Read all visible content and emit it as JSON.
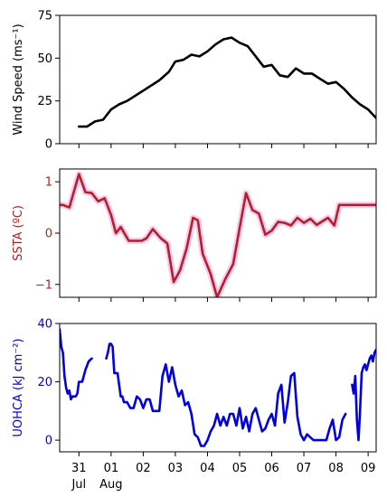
{
  "chart_data": [
    {
      "type": "line",
      "ylabel": "Wind Speed (ms⁻¹)",
      "ylabel_color": "#000000",
      "line_color": "#000000",
      "ylim": [
        0,
        75
      ],
      "yticks": [
        0,
        25,
        50,
        75
      ],
      "ytick_labels": [
        "0",
        "25",
        "50",
        "75"
      ],
      "tick_label_color": "#000000",
      "series": [
        {
          "x": [
            0,
            0.25,
            0.5,
            0.75,
            1.0,
            1.25,
            1.5,
            2.0,
            2.5,
            2.8,
            3.0,
            3.25,
            3.5,
            3.75,
            4.0,
            4.25,
            4.5,
            4.75,
            5.0,
            5.25,
            5.5,
            5.75,
            6.0,
            6.25,
            6.5,
            6.75,
            7.0,
            7.25,
            7.5,
            7.75,
            8.0,
            8.25,
            8.5,
            8.75,
            9.0,
            9.25
          ],
          "y": [
            10,
            10,
            13,
            14,
            20,
            23,
            25,
            31,
            37,
            42,
            48,
            49,
            52,
            51,
            54,
            58,
            61,
            62,
            59,
            57,
            51,
            45,
            46,
            40,
            39,
            44,
            41,
            41,
            38,
            35,
            36,
            32,
            27,
            23,
            20,
            15
          ]
        }
      ]
    },
    {
      "type": "line",
      "ylabel": "SSTA (ºC)",
      "ylabel_color": "#b22222",
      "line_color": "#b22222",
      "shade_color": "#ffc8f2",
      "ylim": [
        -1.25,
        1.25
      ],
      "yticks": [
        -1,
        0,
        1
      ],
      "ytick_labels": [
        "−1",
        "0",
        "1"
      ],
      "tick_label_color": "#b22222",
      "series": [
        {
          "x": [
            -0.6,
            -0.5,
            -0.3,
            0.0,
            0.2,
            0.4,
            0.6,
            0.8,
            1.0,
            1.15,
            1.3,
            1.55,
            1.75,
            1.95,
            2.1,
            2.3,
            2.55,
            2.75,
            2.95,
            3.15,
            3.35,
            3.55,
            3.7,
            3.85,
            4.1,
            4.3,
            4.55,
            4.8,
            5.0,
            5.2,
            5.4,
            5.6,
            5.8,
            6.0,
            6.2,
            6.4,
            6.6,
            6.8,
            7.0,
            7.2,
            7.4,
            7.55,
            7.75,
            7.95,
            8.1,
            8.3,
            8.5,
            8.7,
            8.9,
            9.1,
            9.25
          ],
          "y": [
            0.55,
            0.55,
            0.5,
            1.15,
            0.8,
            0.78,
            0.62,
            0.68,
            0.35,
            0.0,
            0.12,
            -0.15,
            -0.15,
            -0.15,
            -0.1,
            0.08,
            -0.1,
            -0.2,
            -0.95,
            -0.72,
            -0.3,
            0.3,
            0.25,
            -0.4,
            -0.8,
            -1.25,
            -0.9,
            -0.6,
            0.1,
            0.78,
            0.45,
            0.38,
            -0.03,
            0.05,
            0.22,
            0.2,
            0.15,
            0.3,
            0.2,
            0.28,
            0.16,
            0.22,
            0.3,
            0.15,
            0.55,
            0.55,
            0.55,
            0.55,
            0.55,
            0.55,
            0.55
          ]
        }
      ]
    },
    {
      "type": "line",
      "ylabel": "UOHCA (kJ cm⁻²)",
      "ylabel_color": "#0000e0",
      "line_color": "#0000e0",
      "ylim": [
        -4,
        40
      ],
      "yticks": [
        0,
        20,
        40
      ],
      "ytick_labels": [
        "0",
        "20",
        "40"
      ],
      "tick_label_color": "#0000e0",
      "x_axis_ticks": [
        {
          "x": 0,
          "label": "31",
          "sub": "Jul"
        },
        {
          "x": 1,
          "label": "01",
          "sub": "Aug"
        },
        {
          "x": 2,
          "label": "02",
          "sub": ""
        },
        {
          "x": 3,
          "label": "03",
          "sub": ""
        },
        {
          "x": 4,
          "label": "04",
          "sub": ""
        },
        {
          "x": 5,
          "label": "05",
          "sub": ""
        },
        {
          "x": 6,
          "label": "06",
          "sub": ""
        },
        {
          "x": 7,
          "label": "07",
          "sub": ""
        },
        {
          "x": 8,
          "label": "08",
          "sub": ""
        },
        {
          "x": 9,
          "label": "09",
          "sub": ""
        }
      ],
      "xlim": [
        -0.6,
        9.25
      ],
      "series": [
        {
          "x": [
            -0.6,
            -0.55,
            -0.5,
            -0.45,
            -0.4,
            -0.35,
            -0.3,
            -0.25,
            -0.2,
            -0.15,
            -0.1,
            -0.05,
            0.0,
            0.1,
            0.2,
            0.3,
            0.4
          ],
          "y": [
            38,
            32,
            30,
            22,
            18,
            16,
            17,
            14,
            15,
            15,
            15,
            16,
            20,
            20,
            24,
            27,
            28
          ]
        },
        {
          "x": [
            0.85,
            0.9,
            0.95,
            1.0,
            1.05,
            1.1,
            1.15,
            1.2,
            1.3,
            1.35,
            1.4,
            1.5,
            1.6,
            1.7,
            1.8,
            1.9,
            2.0,
            2.1,
            2.2,
            2.3,
            2.4,
            2.5,
            2.6,
            2.7,
            2.8,
            2.9,
            3.0,
            3.1,
            3.2,
            3.3,
            3.4,
            3.5,
            3.6,
            3.7,
            3.8,
            3.9,
            4.0,
            4.1,
            4.2,
            4.3,
            4.4,
            4.5,
            4.6,
            4.7,
            4.8,
            4.9,
            5.0,
            5.1,
            5.2,
            5.3,
            5.4,
            5.5,
            5.6,
            5.7,
            5.8,
            5.9,
            6.0,
            6.1,
            6.2,
            6.3,
            6.4,
            6.5,
            6.6,
            6.7,
            6.8,
            6.9,
            7.0,
            7.1,
            7.2,
            7.3,
            7.4,
            7.5,
            7.6,
            7.7,
            7.8,
            7.9,
            8.0,
            8.1,
            8.2,
            8.3
          ],
          "y": [
            28,
            30,
            33,
            33,
            32,
            23,
            23,
            23,
            15,
            15,
            13,
            13,
            11,
            11,
            15,
            14,
            11,
            14,
            14,
            10,
            10,
            10,
            22,
            26,
            20,
            25,
            19,
            15,
            17,
            12,
            13,
            9,
            2,
            1,
            -2,
            -2,
            0,
            3,
            5,
            9,
            5,
            8,
            5,
            9,
            9,
            5,
            11,
            4,
            8,
            3,
            9,
            11,
            7,
            3,
            4,
            7,
            9,
            5,
            16,
            19,
            6,
            13,
            22,
            23,
            8,
            2,
            0,
            2,
            1,
            0,
            0,
            0,
            0,
            0,
            4,
            7,
            0,
            1,
            7,
            9
          ]
        },
        {
          "x": [
            8.5,
            8.55,
            8.6,
            8.65,
            8.7,
            8.75,
            8.8,
            8.85,
            8.9,
            8.95,
            9.0,
            9.05,
            9.1,
            9.15,
            9.2,
            9.25
          ],
          "y": [
            19,
            16,
            22,
            7,
            0,
            10,
            23,
            25,
            26,
            24,
            26,
            28,
            29,
            27,
            30,
            31
          ]
        }
      ]
    }
  ]
}
